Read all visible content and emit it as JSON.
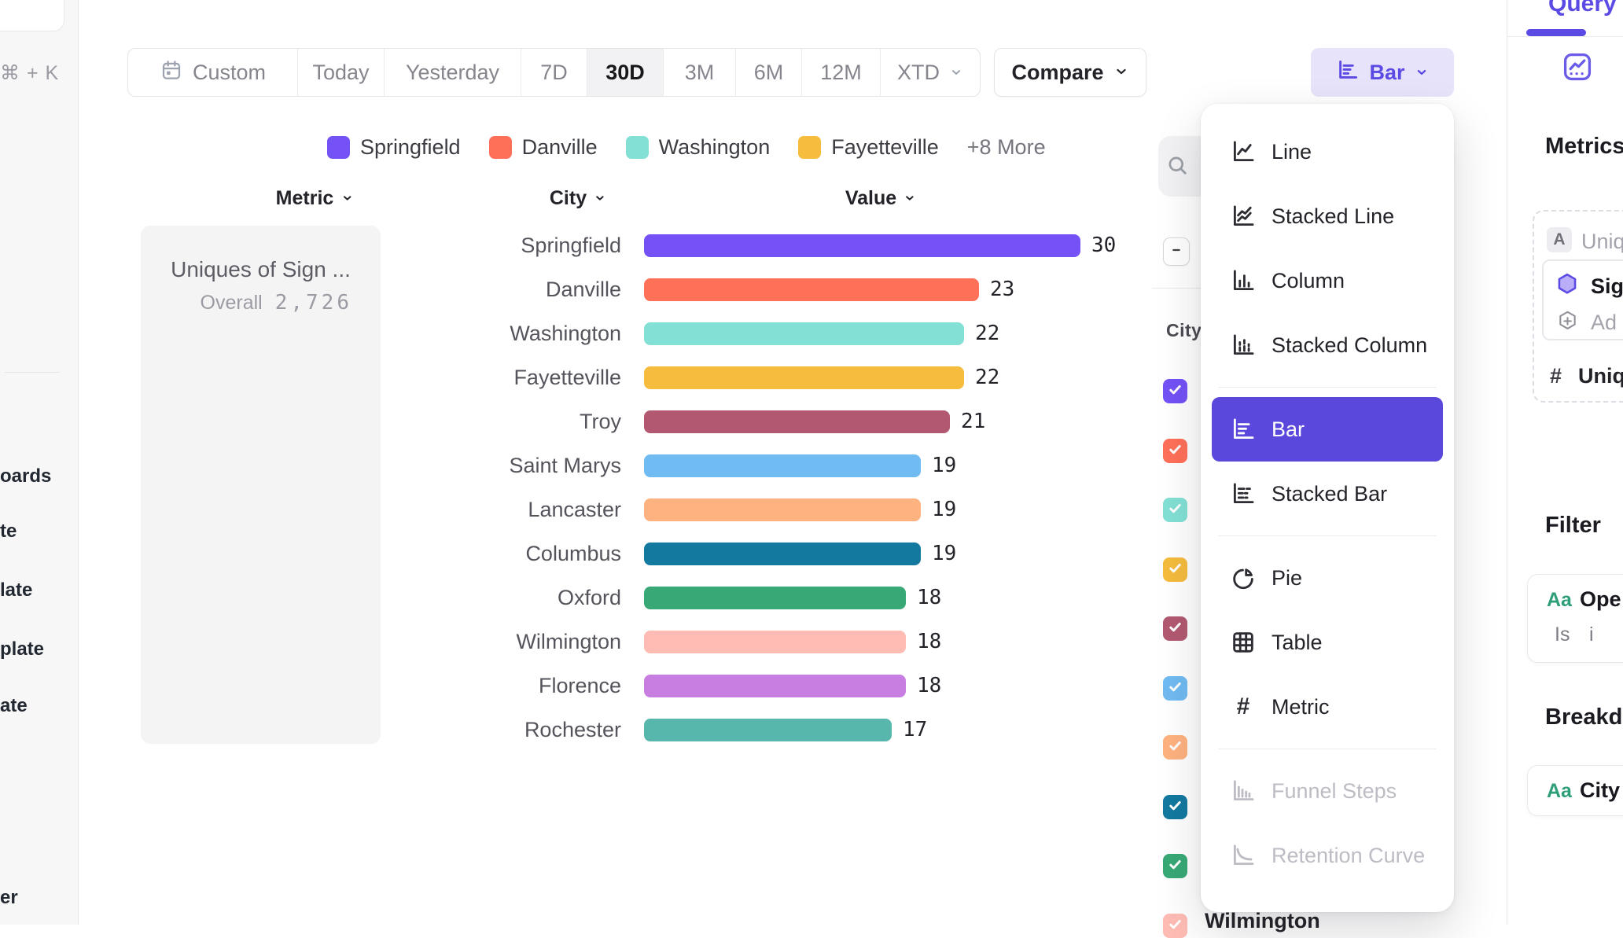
{
  "accent": {
    "purple": "#5b4be4",
    "purple_selected": "#5a48dd",
    "purple_light_bg": "#e7e3fb",
    "green": "#2e9e77"
  },
  "sidebar": {
    "shortcut": "⌘ + K",
    "fragments": [
      "oards",
      "te",
      "late",
      "plate",
      "ate",
      "er"
    ]
  },
  "toolbar": {
    "ranges": [
      {
        "label": "Custom",
        "icon": "calendar"
      },
      {
        "label": "Today"
      },
      {
        "label": "Yesterday"
      },
      {
        "label": "7D"
      },
      {
        "label": "30D",
        "selected": true
      },
      {
        "label": "3M"
      },
      {
        "label": "6M"
      },
      {
        "label": "12M"
      },
      {
        "label": "XTD",
        "chevron": true
      }
    ],
    "compare_label": "Compare",
    "chart_type_button": {
      "label": "Bar"
    }
  },
  "legend": {
    "items": [
      {
        "label": "Springfield",
        "color": "#7452f6"
      },
      {
        "label": "Danville",
        "color": "#ff7059"
      },
      {
        "label": "Washington",
        "color": "#83e0d4"
      },
      {
        "label": "Fayetteville",
        "color": "#f5bc3d"
      }
    ],
    "more_label": "+8 More"
  },
  "table": {
    "columns": [
      "Metric",
      "City",
      "Value"
    ]
  },
  "metric_panel": {
    "title": "Uniques of Sign ...",
    "overall_label": "Overall",
    "overall_value": "2,726"
  },
  "chart_data": {
    "type": "bar",
    "orientation": "horizontal",
    "title": "Uniques of Sign ...",
    "overall": 2726,
    "categories": [
      "Springfield",
      "Danville",
      "Washington",
      "Fayetteville",
      "Troy",
      "Saint Marys",
      "Lancaster",
      "Columbus",
      "Oxford",
      "Wilmington",
      "Florence",
      "Rochester"
    ],
    "values": [
      30,
      23,
      22,
      22,
      21,
      19,
      19,
      19,
      18,
      18,
      18,
      17
    ],
    "colors": [
      "#7452f6",
      "#ff7059",
      "#83e0d4",
      "#f5bc3d",
      "#b25971",
      "#70bbf2",
      "#feb27f",
      "#13799f",
      "#38a976",
      "#febcb4",
      "#c77ee0",
      "#57b7ad"
    ],
    "xlim": [
      0,
      30
    ],
    "grid": false,
    "value_labels": true
  },
  "city_panel": {
    "header": "City",
    "visible_checkbox_count": 10,
    "partial_label": "Wilmington"
  },
  "chart_type_menu": {
    "items": [
      {
        "label": "Line",
        "icon": "line-chart",
        "group": 1
      },
      {
        "label": "Stacked Line",
        "icon": "stacked-line-chart",
        "group": 1
      },
      {
        "label": "Column",
        "icon": "column-chart",
        "group": 1
      },
      {
        "label": "Stacked Column",
        "icon": "stacked-column-chart",
        "group": 1
      },
      {
        "label": "Bar",
        "icon": "bar-chart",
        "group": 2,
        "selected": true
      },
      {
        "label": "Stacked Bar",
        "icon": "stacked-bar-chart",
        "group": 2
      },
      {
        "label": "Pie",
        "icon": "pie-chart",
        "group": 3
      },
      {
        "label": "Table",
        "icon": "table",
        "group": 3
      },
      {
        "label": "Metric",
        "icon": "metric-hash",
        "group": 3
      },
      {
        "label": "Funnel Steps",
        "icon": "funnel-steps",
        "group": 4,
        "disabled": true
      },
      {
        "label": "Retention Curve",
        "icon": "retention-curve",
        "group": 4,
        "disabled": true
      }
    ]
  },
  "query_panel": {
    "tab": "Query",
    "metrics_heading": "Metrics",
    "filter_heading": "Filter",
    "breakdown_heading": "Breakdo",
    "metrics_card": {
      "badge": "A",
      "badge_label": "Uniq",
      "event_label": "Sig",
      "add_label": "Ad",
      "measure_prefix": "#",
      "measure_label": "Uniqu"
    },
    "filter_card": {
      "prefix": "Aa",
      "label": "Ope",
      "operator": "Is",
      "value": "i"
    },
    "breakdown_card": {
      "prefix": "Aa",
      "label": "City"
    }
  }
}
